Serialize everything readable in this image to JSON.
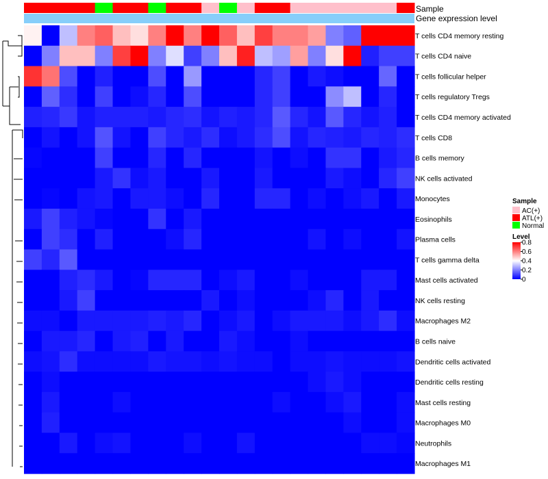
{
  "chart_data": {
    "type": "heatmap",
    "annotation_tracks": [
      "Sample",
      "Gene expression level"
    ],
    "sample_groups": [
      "ATL",
      "ATL",
      "ATL",
      "ATL",
      "Normal",
      "ATL",
      "ATL",
      "Normal",
      "ATL",
      "ATL",
      "AC",
      "Normal",
      "AC",
      "ATL",
      "ATL",
      "AC",
      "AC",
      "AC",
      "AC",
      "AC",
      "AC",
      "ATL"
    ],
    "rows": [
      "T cells CD4 memory resting",
      "T cells CD4 naive",
      "T cells follicular helper",
      "T cells regulatory  Tregs",
      "T cells CD4 memory activated",
      "T cells CD8",
      "B cells memory",
      "NK cells activated",
      "Monocytes",
      "Eosinophils",
      "Plasma cells",
      "T cells gamma delta",
      "Mast cells activated",
      "NK cells resting",
      "Macrophages M2",
      "B cells naive",
      "Dendritic cells activated",
      "Dendritic cells resting",
      "Mast cells resting",
      "Macrophages M0",
      "Neutrophils",
      "Macrophages M1"
    ],
    "values": [
      [
        0.42,
        0.0,
        0.3,
        0.6,
        0.65,
        0.5,
        0.45,
        0.6,
        0.8,
        0.6,
        0.8,
        0.65,
        0.5,
        0.7,
        0.6,
        0.6,
        0.55,
        0.2,
        0.15,
        0.8,
        0.8,
        0.8
      ],
      [
        0.0,
        0.2,
        0.5,
        0.5,
        0.2,
        0.7,
        0.8,
        0.2,
        0.35,
        0.1,
        0.2,
        0.5,
        0.75,
        0.3,
        0.25,
        0.55,
        0.2,
        0.45,
        0.8,
        0.05,
        0.1,
        0.1
      ],
      [
        0.72,
        0.62,
        0.12,
        0.0,
        0.05,
        0.0,
        0.0,
        0.12,
        0.0,
        0.24,
        0.0,
        0.0,
        0.0,
        0.06,
        0.1,
        0.0,
        0.04,
        0.02,
        0.0,
        0.0,
        0.16,
        0.0
      ],
      [
        0.0,
        0.15,
        0.07,
        0.0,
        0.1,
        0.0,
        0.02,
        0.06,
        0.0,
        0.12,
        0.0,
        0.0,
        0.0,
        0.06,
        0.1,
        0.0,
        0.0,
        0.22,
        0.3,
        0.0,
        0.06,
        0.0
      ],
      [
        0.05,
        0.06,
        0.09,
        0.03,
        0.05,
        0.05,
        0.05,
        0.04,
        0.06,
        0.07,
        0.03,
        0.05,
        0.04,
        0.06,
        0.14,
        0.06,
        0.03,
        0.14,
        0.06,
        0.03,
        0.05,
        0.0
      ],
      [
        0.0,
        0.03,
        0.0,
        0.03,
        0.13,
        0.03,
        0.0,
        0.1,
        0.06,
        0.04,
        0.07,
        0.02,
        0.04,
        0.07,
        0.12,
        0.03,
        0.06,
        0.05,
        0.04,
        0.06,
        0.05,
        0.07
      ],
      [
        0.01,
        0.0,
        0.0,
        0.0,
        0.1,
        0.0,
        0.0,
        0.06,
        0.0,
        0.06,
        0.0,
        0.0,
        0.0,
        0.03,
        0.0,
        0.02,
        0.0,
        0.08,
        0.08,
        0.0,
        0.04,
        0.06
      ],
      [
        0.0,
        0.0,
        0.0,
        0.0,
        0.04,
        0.08,
        0.02,
        0.04,
        0.0,
        0.0,
        0.04,
        0.0,
        0.0,
        0.04,
        0.0,
        0.0,
        0.0,
        0.04,
        0.02,
        0.0,
        0.06,
        0.1
      ],
      [
        0.0,
        0.01,
        0.0,
        0.03,
        0.04,
        0.0,
        0.04,
        0.04,
        0.02,
        0.0,
        0.06,
        0.0,
        0.0,
        0.06,
        0.06,
        0.0,
        0.02,
        0.0,
        0.02,
        0.04,
        0.0,
        0.04
      ],
      [
        0.04,
        0.1,
        0.05,
        0.03,
        0.01,
        0.0,
        0.0,
        0.08,
        0.0,
        0.04,
        0.0,
        0.0,
        0.0,
        0.0,
        0.0,
        0.0,
        0.0,
        0.0,
        0.0,
        0.0,
        0.0,
        0.0
      ],
      [
        0.0,
        0.1,
        0.07,
        0.0,
        0.05,
        0.0,
        0.0,
        0.0,
        0.02,
        0.06,
        0.0,
        0.0,
        0.0,
        0.0,
        0.0,
        0.0,
        0.03,
        0.0,
        0.02,
        0.0,
        0.0,
        0.03
      ],
      [
        0.1,
        0.06,
        0.14,
        0.0,
        0.0,
        0.0,
        0.0,
        0.0,
        0.0,
        0.0,
        0.0,
        0.0,
        0.0,
        0.0,
        0.0,
        0.0,
        0.0,
        0.0,
        0.0,
        0.0,
        0.0,
        0.0
      ],
      [
        0.0,
        0.0,
        0.05,
        0.07,
        0.04,
        0.0,
        0.01,
        0.06,
        0.06,
        0.06,
        0.0,
        0.02,
        0.04,
        0.0,
        0.0,
        0.02,
        0.0,
        0.0,
        0.0,
        0.04,
        0.04,
        0.0
      ],
      [
        0.0,
        0.0,
        0.04,
        0.1,
        0.0,
        0.0,
        0.0,
        0.0,
        0.0,
        0.0,
        0.04,
        0.0,
        0.02,
        0.0,
        0.0,
        0.0,
        0.02,
        0.06,
        0.0,
        0.04,
        0.0,
        0.0
      ],
      [
        0.02,
        0.02,
        0.0,
        0.04,
        0.04,
        0.04,
        0.04,
        0.05,
        0.04,
        0.06,
        0.0,
        0.02,
        0.04,
        0.0,
        0.02,
        0.04,
        0.04,
        0.04,
        0.02,
        0.04,
        0.07,
        0.02
      ],
      [
        0.0,
        0.04,
        0.04,
        0.06,
        0.0,
        0.04,
        0.05,
        0.0,
        0.04,
        0.0,
        0.0,
        0.04,
        0.02,
        0.0,
        0.0,
        0.02,
        0.0,
        0.0,
        0.0,
        0.0,
        0.0,
        0.0
      ],
      [
        0.02,
        0.03,
        0.07,
        0.02,
        0.02,
        0.02,
        0.02,
        0.04,
        0.03,
        0.03,
        0.02,
        0.03,
        0.02,
        0.02,
        0.0,
        0.02,
        0.02,
        0.03,
        0.02,
        0.02,
        0.02,
        0.03
      ],
      [
        0.0,
        0.02,
        0.0,
        0.0,
        0.0,
        0.0,
        0.0,
        0.0,
        0.0,
        0.0,
        0.0,
        0.0,
        0.0,
        0.0,
        0.0,
        0.0,
        0.02,
        0.04,
        0.02,
        0.0,
        0.0,
        0.0
      ],
      [
        0.0,
        0.04,
        0.0,
        0.0,
        0.0,
        0.02,
        0.0,
        0.0,
        0.0,
        0.0,
        0.0,
        0.0,
        0.0,
        0.0,
        0.02,
        0.0,
        0.0,
        0.02,
        0.04,
        0.0,
        0.0,
        0.02
      ],
      [
        0.0,
        0.05,
        0.0,
        0.0,
        0.0,
        0.0,
        0.0,
        0.0,
        0.0,
        0.0,
        0.0,
        0.0,
        0.0,
        0.0,
        0.0,
        0.0,
        0.0,
        0.0,
        0.02,
        0.0,
        0.0,
        0.02
      ],
      [
        0.0,
        0.0,
        0.04,
        0.0,
        0.02,
        0.03,
        0.0,
        0.0,
        0.0,
        0.02,
        0.0,
        0.0,
        0.03,
        0.0,
        0.0,
        0.0,
        0.0,
        0.0,
        0.0,
        0.02,
        0.02,
        0.01
      ],
      [
        0.0,
        0.0,
        0.0,
        0.0,
        0.0,
        0.0,
        0.0,
        0.0,
        0.0,
        0.0,
        0.0,
        0.0,
        0.0,
        0.0,
        0.0,
        0.0,
        0.0,
        0.0,
        0.0,
        0.0,
        0.0,
        0.0
      ]
    ],
    "color_scale": {
      "domain": [
        0,
        0.4,
        0.8
      ],
      "colors": [
        "#0000ff",
        "#ffffff",
        "#ff0000"
      ]
    },
    "sample_colors": {
      "AC": "#ffc0cb",
      "ATL": "#ff0000",
      "Normal": "#00ff00"
    },
    "expression_bar_color": "#87cefa",
    "legend": {
      "sample_title": "Sample",
      "sample_items": [
        {
          "key": "AC",
          "label": "AC(+)"
        },
        {
          "key": "ATL",
          "label": "ATL(+)"
        },
        {
          "key": "Normal",
          "label": "Normal"
        }
      ],
      "level_title": "Level",
      "level_ticks": [
        "0.8",
        "0.6",
        "0.4",
        "0.2",
        "0"
      ]
    }
  }
}
